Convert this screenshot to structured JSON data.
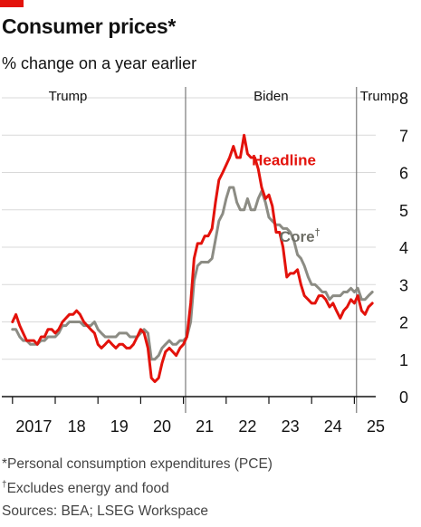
{
  "title": "Consumer prices*",
  "subtitle": "% change on a year earlier",
  "notes": {
    "pce": "*Personal consumption expenditures (PCE)",
    "core": "Excludes energy and food",
    "core_mark": "†",
    "sources": "Sources: BEA; LSEG Workspace"
  },
  "colors": {
    "headline": "#e3120b",
    "core": "#8c8c84",
    "brand": "#e3120b",
    "grid": "#d9d9d9",
    "divider": "#7a7a7a"
  },
  "chart_data": {
    "type": "line",
    "y_range": [
      0,
      8
    ],
    "y_ticks": [
      "0",
      "1",
      "2",
      "3",
      "4",
      "5",
      "6",
      "7",
      "8"
    ],
    "x_range": [
      2016.75,
      2025.5
    ],
    "x_ticks": [
      {
        "year": 2017,
        "label": "2017"
      },
      {
        "year": 2018,
        "label": "18"
      },
      {
        "year": 2019,
        "label": "19"
      },
      {
        "year": 2020,
        "label": "20"
      },
      {
        "year": 2021,
        "label": "21"
      },
      {
        "year": 2022,
        "label": "22"
      },
      {
        "year": 2023,
        "label": "23"
      },
      {
        "year": 2024,
        "label": "24"
      },
      {
        "year": 2025,
        "label": "25"
      }
    ],
    "eras": [
      {
        "label": "Trump",
        "start": 2016.75,
        "end": 2021.05
      },
      {
        "label": "Biden",
        "start": 2021.05,
        "end": 2025.05
      },
      {
        "label": "Trump",
        "start": 2025.05,
        "end": 2025.5
      }
    ],
    "era_dividers": [
      2021.05,
      2025.05
    ],
    "series": [
      {
        "name": "Headline",
        "key": "headline",
        "label_year": 2022.6,
        "label_value": 6.2,
        "points": [
          [
            2017.0,
            2.0
          ],
          [
            2017.08,
            2.2
          ],
          [
            2017.17,
            1.9
          ],
          [
            2017.25,
            1.7
          ],
          [
            2017.33,
            1.5
          ],
          [
            2017.42,
            1.5
          ],
          [
            2017.5,
            1.5
          ],
          [
            2017.58,
            1.4
          ],
          [
            2017.67,
            1.6
          ],
          [
            2017.75,
            1.6
          ],
          [
            2017.83,
            1.8
          ],
          [
            2017.92,
            1.8
          ],
          [
            2018.0,
            1.7
          ],
          [
            2018.08,
            1.8
          ],
          [
            2018.17,
            2.0
          ],
          [
            2018.25,
            2.1
          ],
          [
            2018.33,
            2.2
          ],
          [
            2018.42,
            2.2
          ],
          [
            2018.5,
            2.3
          ],
          [
            2018.58,
            2.2
          ],
          [
            2018.67,
            2.0
          ],
          [
            2018.75,
            1.9
          ],
          [
            2018.83,
            1.8
          ],
          [
            2018.92,
            1.7
          ],
          [
            2019.0,
            1.4
          ],
          [
            2019.08,
            1.3
          ],
          [
            2019.17,
            1.4
          ],
          [
            2019.25,
            1.5
          ],
          [
            2019.33,
            1.4
          ],
          [
            2019.42,
            1.3
          ],
          [
            2019.5,
            1.4
          ],
          [
            2019.58,
            1.4
          ],
          [
            2019.67,
            1.3
          ],
          [
            2019.75,
            1.3
          ],
          [
            2019.83,
            1.4
          ],
          [
            2019.92,
            1.6
          ],
          [
            2020.0,
            1.8
          ],
          [
            2020.08,
            1.7
          ],
          [
            2020.17,
            1.3
          ],
          [
            2020.25,
            0.5
          ],
          [
            2020.33,
            0.4
          ],
          [
            2020.42,
            0.5
          ],
          [
            2020.5,
            0.9
          ],
          [
            2020.58,
            1.2
          ],
          [
            2020.67,
            1.3
          ],
          [
            2020.75,
            1.2
          ],
          [
            2020.83,
            1.1
          ],
          [
            2020.92,
            1.3
          ],
          [
            2021.0,
            1.4
          ],
          [
            2021.08,
            1.6
          ],
          [
            2021.17,
            2.5
          ],
          [
            2021.25,
            3.7
          ],
          [
            2021.33,
            4.1
          ],
          [
            2021.42,
            4.1
          ],
          [
            2021.5,
            4.3
          ],
          [
            2021.58,
            4.3
          ],
          [
            2021.67,
            4.5
          ],
          [
            2021.75,
            5.2
          ],
          [
            2021.83,
            5.8
          ],
          [
            2021.92,
            6.0
          ],
          [
            2022.0,
            6.2
          ],
          [
            2022.08,
            6.4
          ],
          [
            2022.17,
            6.7
          ],
          [
            2022.25,
            6.4
          ],
          [
            2022.33,
            6.4
          ],
          [
            2022.42,
            7.0
          ],
          [
            2022.5,
            6.5
          ],
          [
            2022.58,
            6.4
          ],
          [
            2022.67,
            6.4
          ],
          [
            2022.75,
            6.1
          ],
          [
            2022.83,
            5.6
          ],
          [
            2022.92,
            5.3
          ],
          [
            2023.0,
            5.4
          ],
          [
            2023.08,
            5.1
          ],
          [
            2023.17,
            4.4
          ],
          [
            2023.25,
            4.4
          ],
          [
            2023.33,
            4.0
          ],
          [
            2023.42,
            3.2
          ],
          [
            2023.5,
            3.3
          ],
          [
            2023.58,
            3.3
          ],
          [
            2023.67,
            3.4
          ],
          [
            2023.75,
            3.0
          ],
          [
            2023.83,
            2.7
          ],
          [
            2023.92,
            2.6
          ],
          [
            2024.0,
            2.5
          ],
          [
            2024.08,
            2.5
          ],
          [
            2024.17,
            2.7
          ],
          [
            2024.25,
            2.7
          ],
          [
            2024.33,
            2.6
          ],
          [
            2024.42,
            2.4
          ],
          [
            2024.5,
            2.5
          ],
          [
            2024.58,
            2.3
          ],
          [
            2024.67,
            2.1
          ],
          [
            2024.75,
            2.3
          ],
          [
            2024.83,
            2.4
          ],
          [
            2024.92,
            2.6
          ],
          [
            2025.0,
            2.5
          ],
          [
            2025.08,
            2.7
          ],
          [
            2025.17,
            2.3
          ],
          [
            2025.25,
            2.2
          ],
          [
            2025.33,
            2.4
          ],
          [
            2025.42,
            2.5
          ]
        ]
      },
      {
        "name": "Core",
        "key": "core",
        "mark": "†",
        "label_year": 2023.25,
        "label_value": 4.15,
        "points": [
          [
            2017.0,
            1.8
          ],
          [
            2017.08,
            1.8
          ],
          [
            2017.17,
            1.6
          ],
          [
            2017.25,
            1.5
          ],
          [
            2017.33,
            1.5
          ],
          [
            2017.42,
            1.4
          ],
          [
            2017.5,
            1.4
          ],
          [
            2017.58,
            1.4
          ],
          [
            2017.67,
            1.5
          ],
          [
            2017.75,
            1.5
          ],
          [
            2017.83,
            1.6
          ],
          [
            2017.92,
            1.6
          ],
          [
            2018.0,
            1.6
          ],
          [
            2018.08,
            1.7
          ],
          [
            2018.17,
            1.9
          ],
          [
            2018.25,
            1.9
          ],
          [
            2018.33,
            2.0
          ],
          [
            2018.42,
            2.0
          ],
          [
            2018.5,
            2.0
          ],
          [
            2018.58,
            2.0
          ],
          [
            2018.67,
            1.9
          ],
          [
            2018.75,
            1.9
          ],
          [
            2018.83,
            1.9
          ],
          [
            2018.92,
            2.0
          ],
          [
            2019.0,
            1.8
          ],
          [
            2019.08,
            1.7
          ],
          [
            2019.17,
            1.6
          ],
          [
            2019.25,
            1.6
          ],
          [
            2019.33,
            1.6
          ],
          [
            2019.42,
            1.6
          ],
          [
            2019.5,
            1.7
          ],
          [
            2019.58,
            1.7
          ],
          [
            2019.67,
            1.7
          ],
          [
            2019.75,
            1.6
          ],
          [
            2019.83,
            1.6
          ],
          [
            2019.92,
            1.6
          ],
          [
            2020.0,
            1.7
          ],
          [
            2020.08,
            1.8
          ],
          [
            2020.17,
            1.7
          ],
          [
            2020.25,
            1.0
          ],
          [
            2020.33,
            1.0
          ],
          [
            2020.42,
            1.1
          ],
          [
            2020.5,
            1.3
          ],
          [
            2020.58,
            1.4
          ],
          [
            2020.67,
            1.5
          ],
          [
            2020.75,
            1.4
          ],
          [
            2020.83,
            1.4
          ],
          [
            2020.92,
            1.5
          ],
          [
            2021.0,
            1.5
          ],
          [
            2021.08,
            1.6
          ],
          [
            2021.17,
            2.0
          ],
          [
            2021.25,
            3.1
          ],
          [
            2021.33,
            3.5
          ],
          [
            2021.42,
            3.6
          ],
          [
            2021.5,
            3.6
          ],
          [
            2021.58,
            3.6
          ],
          [
            2021.67,
            3.7
          ],
          [
            2021.75,
            4.2
          ],
          [
            2021.83,
            4.7
          ],
          [
            2021.92,
            4.9
          ],
          [
            2022.0,
            5.3
          ],
          [
            2022.08,
            5.6
          ],
          [
            2022.17,
            5.6
          ],
          [
            2022.25,
            5.2
          ],
          [
            2022.33,
            5.0
          ],
          [
            2022.42,
            5.0
          ],
          [
            2022.5,
            5.3
          ],
          [
            2022.58,
            5.0
          ],
          [
            2022.67,
            5.0
          ],
          [
            2022.75,
            5.3
          ],
          [
            2022.83,
            5.5
          ],
          [
            2022.92,
            5.2
          ],
          [
            2023.0,
            4.8
          ],
          [
            2023.08,
            4.7
          ],
          [
            2023.17,
            4.6
          ],
          [
            2023.25,
            4.6
          ],
          [
            2023.33,
            4.5
          ],
          [
            2023.42,
            4.5
          ],
          [
            2023.5,
            4.4
          ],
          [
            2023.58,
            4.2
          ],
          [
            2023.67,
            3.8
          ],
          [
            2023.75,
            3.7
          ],
          [
            2023.83,
            3.5
          ],
          [
            2023.92,
            3.2
          ],
          [
            2024.0,
            3.0
          ],
          [
            2024.08,
            3.0
          ],
          [
            2024.17,
            2.9
          ],
          [
            2024.25,
            2.8
          ],
          [
            2024.33,
            2.8
          ],
          [
            2024.42,
            2.6
          ],
          [
            2024.5,
            2.7
          ],
          [
            2024.58,
            2.7
          ],
          [
            2024.67,
            2.7
          ],
          [
            2024.75,
            2.8
          ],
          [
            2024.83,
            2.8
          ],
          [
            2024.92,
            2.9
          ],
          [
            2025.0,
            2.8
          ],
          [
            2025.08,
            2.9
          ],
          [
            2025.17,
            2.6
          ],
          [
            2025.25,
            2.6
          ],
          [
            2025.33,
            2.7
          ],
          [
            2025.42,
            2.8
          ]
        ]
      }
    ]
  }
}
